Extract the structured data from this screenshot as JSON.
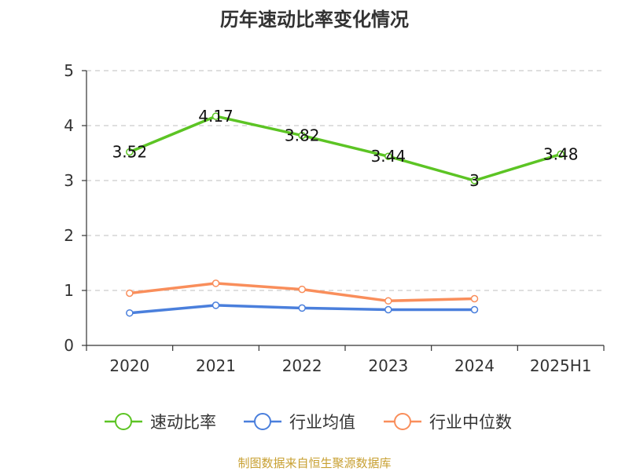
{
  "chart_data": {
    "type": "line",
    "title": "历年速动比率变化情况",
    "categories": [
      "2020",
      "2021",
      "2022",
      "2023",
      "2024",
      "2025H1"
    ],
    "ylim": [
      0,
      5
    ],
    "yticks": [
      "0",
      "1",
      "2",
      "3",
      "4",
      "5"
    ],
    "grid": "horizontal dashed",
    "legend_position": "bottom",
    "series": [
      {
        "name": "速动比率",
        "color": "#5cc424",
        "values": [
          3.52,
          4.17,
          3.82,
          3.44,
          3,
          3.48
        ],
        "labels": [
          "3.52",
          "4.17",
          "3.82",
          "3.44",
          "3",
          "3.48"
        ]
      },
      {
        "name": "行业均值",
        "color": "#4a7fdc",
        "values": [
          0.59,
          0.73,
          0.68,
          0.65,
          0.65,
          null
        ]
      },
      {
        "name": "行业中位数",
        "color": "#f98e5b",
        "values": [
          0.95,
          1.13,
          1.02,
          0.81,
          0.85,
          null
        ]
      }
    ]
  },
  "footer": "制图数据来自恒生聚源数据库"
}
